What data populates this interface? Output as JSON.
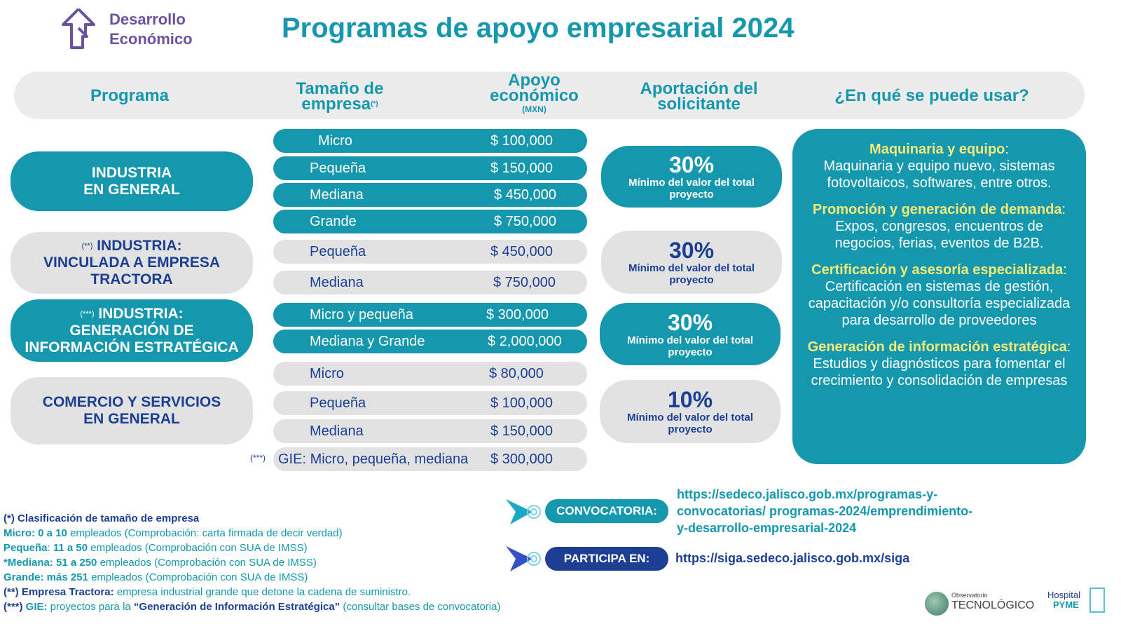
{
  "logo": {
    "line1": "Desarrollo",
    "line2": "Económico",
    "color": "#6b52a0"
  },
  "title": "Programas de apoyo empresarial 2024",
  "headers": {
    "programa": "Programa",
    "tamano_1": "Tamaño de",
    "tamano_2": "empresa",
    "tamano_note": "(*)",
    "apoyo_1": "Apoyo",
    "apoyo_2": "económico",
    "apoyo_unit": "(MXN)",
    "aport_1": "Aportación del",
    "aport_2": "solicitante",
    "uso": "¿En qué se puede usar?"
  },
  "programs": [
    {
      "note": "",
      "l1": "INDUSTRIA",
      "l2": "EN GENERAL",
      "l3": ""
    },
    {
      "note": "(**)",
      "l1": "INDUSTRIA:",
      "l2": "VINCULADA A EMPRESA",
      "l3": "TRACTORA"
    },
    {
      "note": "(***)",
      "l1": "INDUSTRIA:",
      "l2": "GENERACIÓN DE",
      "l3": "INFORMACIÓN ESTRATÉGICA"
    },
    {
      "note": "",
      "l1": "COMERCIO Y SERVICIOS",
      "l2": "EN GENERAL",
      "l3": ""
    }
  ],
  "rows": [
    {
      "size": "Micro",
      "amount": "$ 100,000"
    },
    {
      "size": "Pequeña",
      "amount": "$ 150,000"
    },
    {
      "size": "Mediana",
      "amount": "$ 450,000"
    },
    {
      "size": "Grande",
      "amount": "$ 750,000"
    },
    {
      "size": "Pequeña",
      "amount": "$ 450,000"
    },
    {
      "size": "Mediana",
      "amount": "$ 750,000"
    },
    {
      "size": "Micro y pequeña",
      "amount": "$ 300,000"
    },
    {
      "size": "Mediana y Grande",
      "amount": "$ 2,000,000"
    },
    {
      "size": "Micro",
      "amount": "$ 80,000"
    },
    {
      "size": "Pequeña",
      "amount": "$ 100,000"
    },
    {
      "size": "Mediana",
      "amount": "$ 150,000"
    },
    {
      "size": "GIE: Micro, pequeña, mediana",
      "amount": "$ 300,000",
      "note": "(***)"
    }
  ],
  "contributions": [
    {
      "pct": "30%",
      "l1": "Mínimo del valor del total",
      "l2": "proyecto"
    },
    {
      "pct": "30%",
      "l1": "Mínimo del valor del total",
      "l2": "proyecto"
    },
    {
      "pct": "30%",
      "l1": "Mínimo del valor del total",
      "l2": "proyecto"
    },
    {
      "pct": "10%",
      "l1": "Mínimo del valor del total",
      "l2": "proyecto"
    }
  ],
  "uses": [
    {
      "title": "Maquinaria y equipo",
      "text": "Maquinaria y equipo nuevo, sistemas fotovoltaicos, softwares, entre otros."
    },
    {
      "title": "Promoción y generación de demanda",
      "text": "Expos, congresos, encuentros de negocios, ferias, eventos de B2B."
    },
    {
      "title": "Certificación y asesoría especializada",
      "text": "Certificación en sistemas de gestión, capacitación y/o consultoría especializada  para desarrollo de proveedores"
    },
    {
      "title": "Generación de información estratégica",
      "text": "Estudios y diagnósticos para fomentar el crecimiento y consolidación de empresas"
    }
  ],
  "footnotes": {
    "title": "(*) Clasificación de tamaño de empresa",
    "micro_b": "Micro: 0 a 10",
    "micro_t": " empleados (Comprobación: carta firmada de decir verdad)",
    "peq_b1": "Pequeña",
    "peq_sep": ": ",
    "peq_b2": "11 a 50",
    "peq_t": " empleados (Comprobación con SUA de IMSS)",
    "med_b": "*Mediana: 51 a 250",
    "med_t": " empleados (Comprobación con SUA de IMSS)",
    "gra_b": "Grande: más 251",
    "gra_t": " empleados (Comprobación con SUA de IMSS)",
    "tr_b": "(**) Empresa Tractora:",
    "tr_t": " empresa industrial grande que detone la cadena de suministro.",
    "gie_n": "(***) ",
    "gie_b": "GIE:",
    "gie_t": " proyectos para la ",
    "gie_q": "“Generación de Información Estratégica”",
    "gie_t2": " (consultar bases de convocatoria)"
  },
  "convocatoria": {
    "label": "CONVOCATORIA:",
    "l1": "https://sedeco.jalisco.gob.mx/programas-y-",
    "l2": "convocatorias/  programas-2024/emprendimiento-",
    "l3": "y-desarrollo-empresarial-2024"
  },
  "participa": {
    "label": "PARTICIPA EN:",
    "url": "https://siga.sedeco.jalisco.gob.mx/siga"
  },
  "partner_logos": [
    "Observatorio TECNOLÓGICO",
    "Hospital PYME"
  ],
  "colors": {
    "teal": "#1597ad",
    "gray": "#e2e2e2",
    "navy": "#1c3f94",
    "purple": "#6b52a0",
    "yellow": "#f3e97a"
  }
}
